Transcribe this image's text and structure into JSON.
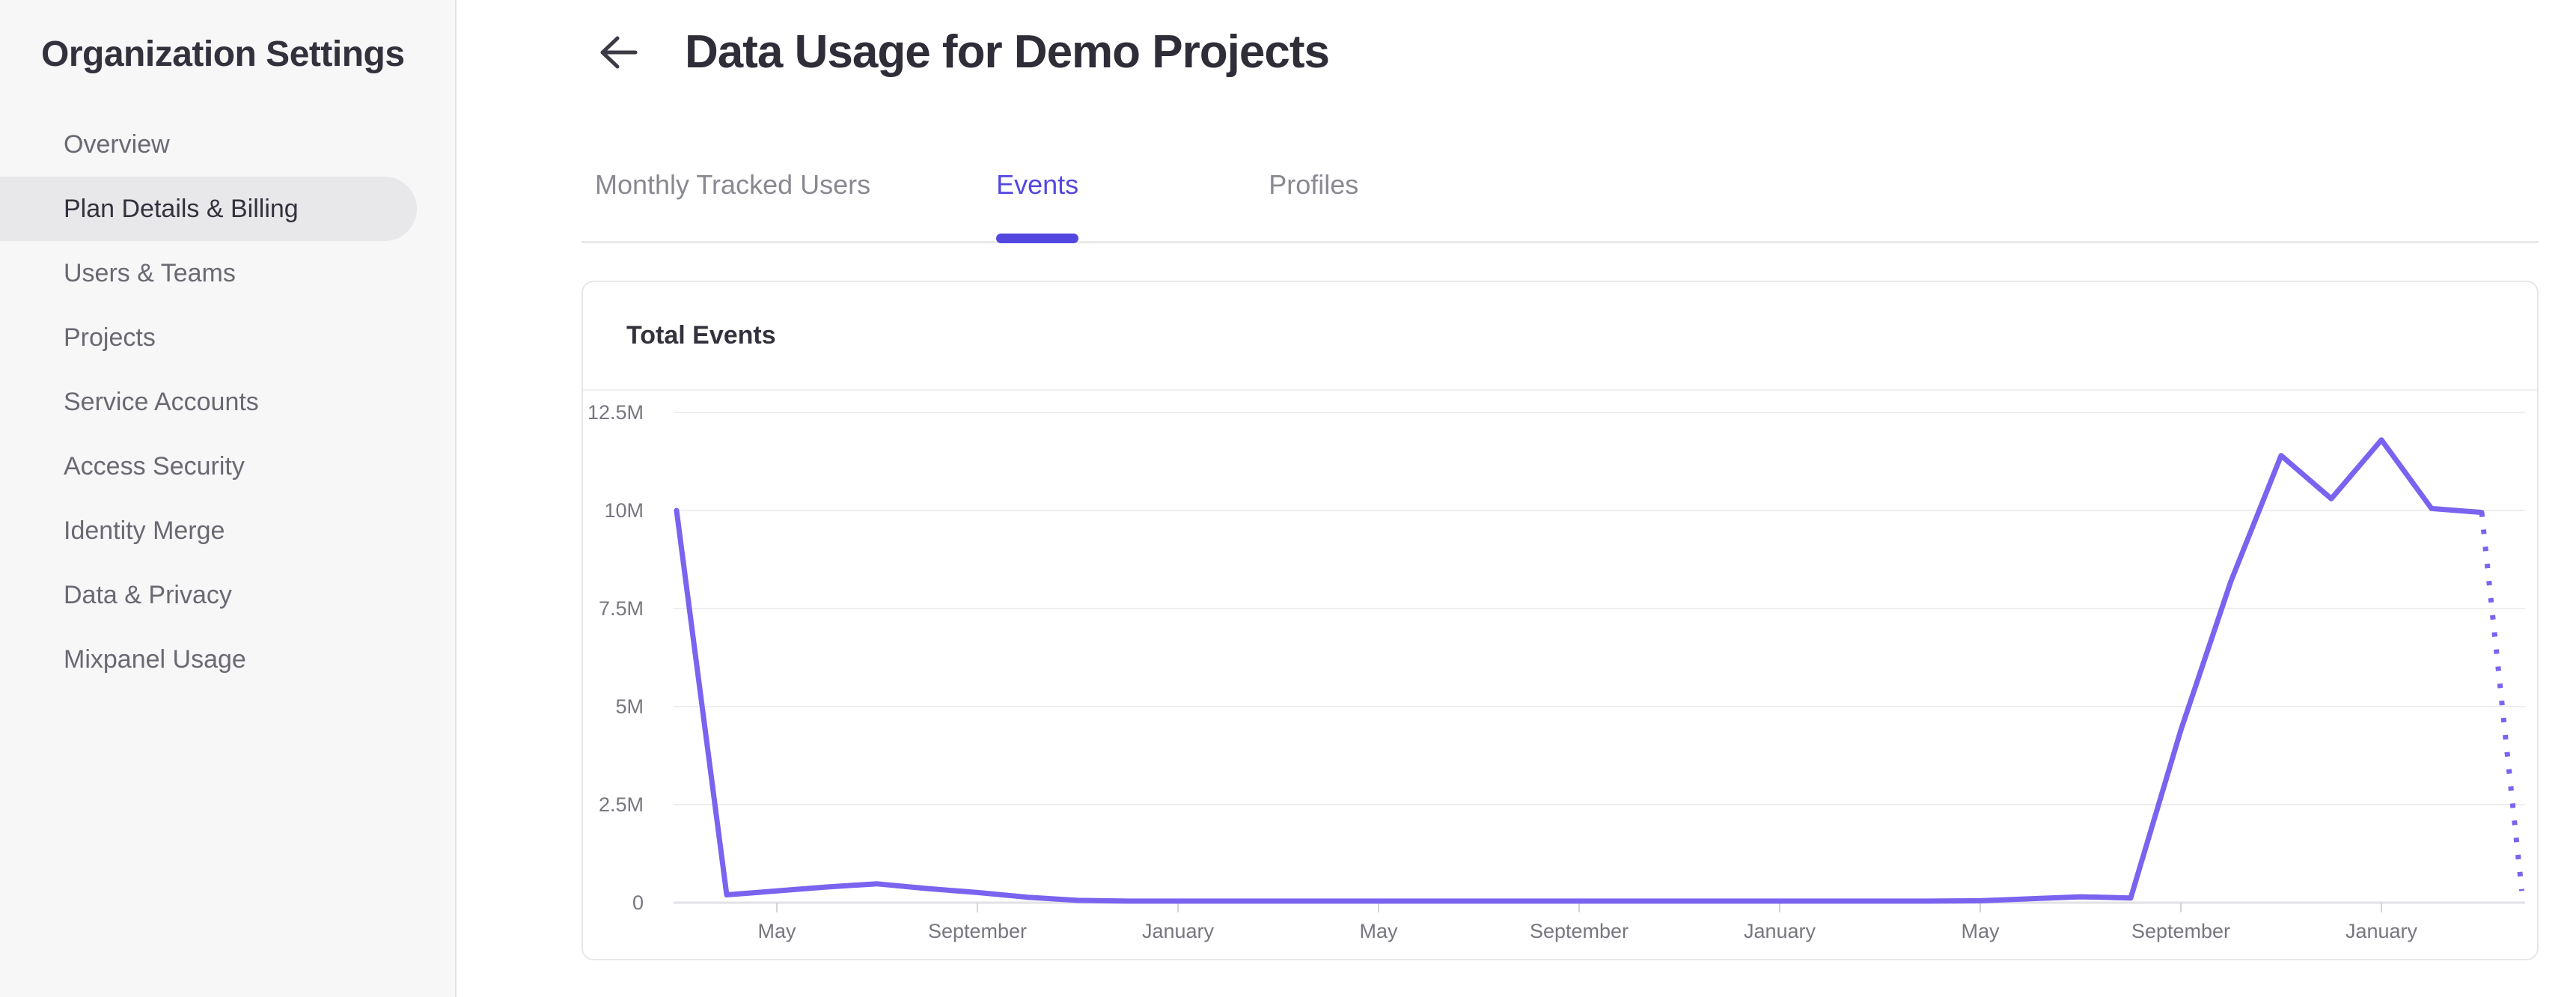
{
  "sidebar": {
    "title": "Organization Settings",
    "items": [
      {
        "label": "Overview",
        "selected": false
      },
      {
        "label": "Plan Details & Billing",
        "selected": true
      },
      {
        "label": "Users & Teams",
        "selected": false
      },
      {
        "label": "Projects",
        "selected": false
      },
      {
        "label": "Service Accounts",
        "selected": false
      },
      {
        "label": "Access Security",
        "selected": false
      },
      {
        "label": "Identity Merge",
        "selected": false
      },
      {
        "label": "Data & Privacy",
        "selected": false
      },
      {
        "label": "Mixpanel Usage",
        "selected": false
      }
    ]
  },
  "header": {
    "title": "Data Usage for Demo Projects",
    "back_icon": "arrow-left-icon"
  },
  "tabs": [
    {
      "label": "Monthly Tracked Users",
      "active": false
    },
    {
      "label": "Events",
      "active": true
    },
    {
      "label": "Profiles",
      "active": false
    }
  ],
  "card": {
    "title": "Total Events"
  },
  "colors": {
    "accent": "#5447e0",
    "chart_line": "#7a63ef",
    "sidebar_bg": "#f7f7f8",
    "sidebar_border": "#e3e2e6",
    "sidebar_selected_bg": "#e8e7ea",
    "text_dark": "#33313c",
    "text_muted": "#6a6972",
    "tab_inactive": "#8a8992",
    "axis_label": "#77767f",
    "grid": "#eeedf0",
    "axis_line": "#e2e2e6",
    "card_border": "#e7e7ea"
  },
  "chart_data": {
    "type": "line",
    "title": "Total Events",
    "unit": "events (millions)",
    "grid": true,
    "legend": false,
    "x_axis": {
      "tick_labels": [
        "May",
        "September",
        "January",
        "May",
        "September",
        "January",
        "May",
        "September",
        "January"
      ],
      "tick_month_indices": [
        2,
        6,
        10,
        14,
        18,
        22,
        26,
        30,
        34
      ]
    },
    "y_axis": {
      "min": 0,
      "max": 12.5,
      "ticks": [
        {
          "value": 0,
          "label": "0"
        },
        {
          "value": 2.5,
          "label": "2.5M"
        },
        {
          "value": 5,
          "label": "5M"
        },
        {
          "value": 7.5,
          "label": "7.5M"
        },
        {
          "value": 10,
          "label": "10M"
        },
        {
          "value": 12.5,
          "label": "12.5M"
        }
      ]
    },
    "series": [
      {
        "name": "Total Events",
        "style": "solid",
        "points": [
          [
            0,
            10.0
          ],
          [
            1,
            0.2
          ],
          [
            2,
            0.3
          ],
          [
            3,
            0.4
          ],
          [
            4,
            0.48
          ],
          [
            5,
            0.36
          ],
          [
            6,
            0.26
          ],
          [
            7,
            0.14
          ],
          [
            8,
            0.06
          ],
          [
            9,
            0.04
          ],
          [
            10,
            0.04
          ],
          [
            11,
            0.04
          ],
          [
            12,
            0.04
          ],
          [
            13,
            0.04
          ],
          [
            14,
            0.04
          ],
          [
            15,
            0.04
          ],
          [
            16,
            0.04
          ],
          [
            17,
            0.04
          ],
          [
            18,
            0.04
          ],
          [
            19,
            0.04
          ],
          [
            20,
            0.04
          ],
          [
            21,
            0.04
          ],
          [
            22,
            0.04
          ],
          [
            23,
            0.04
          ],
          [
            24,
            0.04
          ],
          [
            25,
            0.04
          ],
          [
            26,
            0.05
          ],
          [
            27,
            0.1
          ],
          [
            28,
            0.15
          ],
          [
            29,
            0.12
          ],
          [
            30,
            4.4
          ],
          [
            31,
            8.2
          ],
          [
            32,
            11.4
          ],
          [
            33,
            10.3
          ],
          [
            34,
            11.8
          ],
          [
            35,
            10.05
          ],
          [
            36,
            9.95
          ]
        ]
      },
      {
        "name": "Total Events (incomplete period projection)",
        "style": "dotted",
        "points": [
          [
            36,
            9.95
          ],
          [
            36.8,
            0.3
          ]
        ]
      }
    ]
  }
}
